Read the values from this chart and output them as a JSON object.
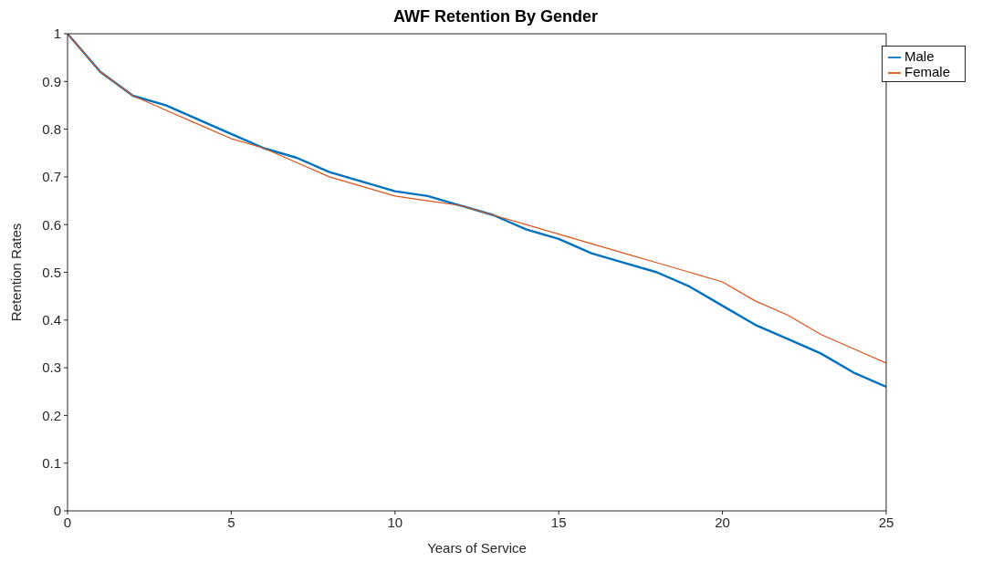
{
  "chart_data": {
    "type": "line",
    "title": "AWF Retention By Gender",
    "xlabel": "Years of Service",
    "ylabel": "Retention Rates",
    "x": [
      0,
      1,
      2,
      3,
      4,
      5,
      6,
      7,
      8,
      9,
      10,
      11,
      12,
      13,
      14,
      15,
      16,
      17,
      18,
      19,
      20,
      21,
      22,
      23,
      24,
      25
    ],
    "series": [
      {
        "name": "Male",
        "color": "#0072bd",
        "values": [
          1.0,
          0.92,
          0.87,
          0.85,
          0.82,
          0.79,
          0.76,
          0.74,
          0.71,
          0.69,
          0.67,
          0.66,
          0.64,
          0.62,
          0.59,
          0.57,
          0.54,
          0.52,
          0.5,
          0.47,
          0.43,
          0.39,
          0.36,
          0.33,
          0.29,
          0.26
        ]
      },
      {
        "name": "Female",
        "color": "#d95319",
        "values": [
          1.0,
          0.92,
          0.87,
          0.84,
          0.81,
          0.78,
          0.76,
          0.73,
          0.7,
          0.68,
          0.66,
          0.65,
          0.64,
          0.62,
          0.6,
          0.58,
          0.56,
          0.54,
          0.52,
          0.5,
          0.48,
          0.44,
          0.41,
          0.37,
          0.34,
          0.31
        ]
      }
    ],
    "xlim": [
      0,
      25
    ],
    "xticks": [
      0,
      5,
      10,
      15,
      20,
      25
    ],
    "ylim": [
      0,
      1
    ],
    "yticks": [
      0,
      0.1,
      0.2,
      0.3,
      0.4,
      0.5,
      0.6,
      0.7,
      0.8,
      0.9,
      1
    ],
    "grid": false,
    "legend": "top right",
    "marker": "none",
    "line_style": "solid"
  }
}
